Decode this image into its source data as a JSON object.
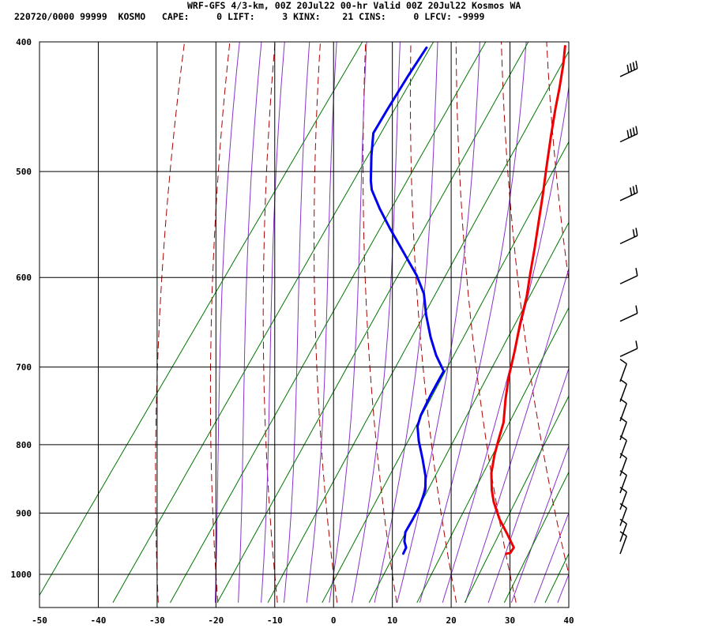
{
  "header": {
    "line1": "WRF-GFS 4/3-km, 00Z 20Jul22 00-hr Valid 00Z 20Jul22 Kosmos WA",
    "line2": "220720/0000 99999  KOSMO   CAPE:     0 LIFT:     3 KINX:    21 CINS:     0 LFCV: -9999"
  },
  "colors": {
    "temperature": "#ee0000",
    "dewpoint": "#0000ee",
    "dry_adiabat": "#aa0000",
    "moist_adiabat": "#8833cc",
    "isotherm_grid": "#000000",
    "mixing_ratio": "#007700",
    "wind_barb": "#000000"
  },
  "chart_data": {
    "type": "line",
    "title": "",
    "xlabel": "",
    "ylabel": "",
    "x_ticks": [
      -50,
      -40,
      -30,
      -20,
      -10,
      0,
      10,
      20,
      30,
      40
    ],
    "x_tick_labels": [
      "-50",
      "-40",
      "-30",
      "-20",
      "-10",
      "0",
      "10",
      "20",
      "30",
      "40"
    ],
    "y_ticks": [
      400,
      500,
      600,
      700,
      800,
      900,
      1000
    ],
    "y_tick_labels": [
      "400",
      "500",
      "600",
      "700",
      "800",
      "900",
      "1000"
    ],
    "xlim": [
      -50,
      40
    ],
    "ylim": [
      1040,
      400
    ],
    "y_scale": "log",
    "grid": true,
    "series": [
      {
        "key": "temperature",
        "points": [
          [
            27.0,
            965
          ],
          [
            27.6,
            964
          ],
          [
            27.6,
            955
          ],
          [
            25.2,
            935
          ],
          [
            22.0,
            910
          ],
          [
            19.0,
            883
          ],
          [
            17.3,
            865
          ],
          [
            15.3,
            840
          ],
          [
            13.8,
            815
          ],
          [
            12.8,
            795
          ],
          [
            11.6,
            770
          ],
          [
            9.3,
            740
          ],
          [
            7.3,
            712
          ],
          [
            5.3,
            680
          ],
          [
            3.2,
            650
          ],
          [
            1.2,
            620
          ],
          [
            -0.9,
            595
          ],
          [
            -3.0,
            570
          ],
          [
            -5.3,
            545
          ],
          [
            -7.7,
            520
          ],
          [
            -10.1,
            497
          ],
          [
            -13.0,
            470
          ],
          [
            -15.3,
            449
          ],
          [
            -17.0,
            433
          ],
          [
            -19.0,
            416
          ],
          [
            -20.8,
            403
          ]
        ]
      },
      {
        "key": "dewpoint",
        "points": [
          [
            9.5,
            965
          ],
          [
            9.3,
            955
          ],
          [
            8.3,
            945
          ],
          [
            7.4,
            930
          ],
          [
            7.2,
            910
          ],
          [
            6.9,
            890
          ],
          [
            6.0,
            865
          ],
          [
            4.5,
            845
          ],
          [
            2.0,
            820
          ],
          [
            -0.7,
            795
          ],
          [
            -2.6,
            775
          ],
          [
            -3.3,
            760
          ],
          [
            -3.9,
            735
          ],
          [
            -4.3,
            712
          ],
          [
            -4.4,
            705
          ],
          [
            -7.5,
            686
          ],
          [
            -10.5,
            665
          ],
          [
            -13.8,
            640
          ],
          [
            -16.6,
            617
          ],
          [
            -19.9,
            598
          ],
          [
            -24.7,
            575
          ],
          [
            -29.7,
            552
          ],
          [
            -33.8,
            533
          ],
          [
            -37.3,
            516
          ],
          [
            -38.5,
            508
          ],
          [
            -41.2,
            487
          ],
          [
            -43.5,
            468
          ],
          [
            -43.8,
            450
          ],
          [
            -44.1,
            425
          ],
          [
            -44.2,
            404
          ]
        ]
      }
    ],
    "wind_levels": [
      955,
      935,
      910,
      885,
      860,
      835,
      810,
      785,
      760,
      735,
      710,
      680,
      640,
      600,
      560,
      520,
      470,
      420
    ]
  }
}
